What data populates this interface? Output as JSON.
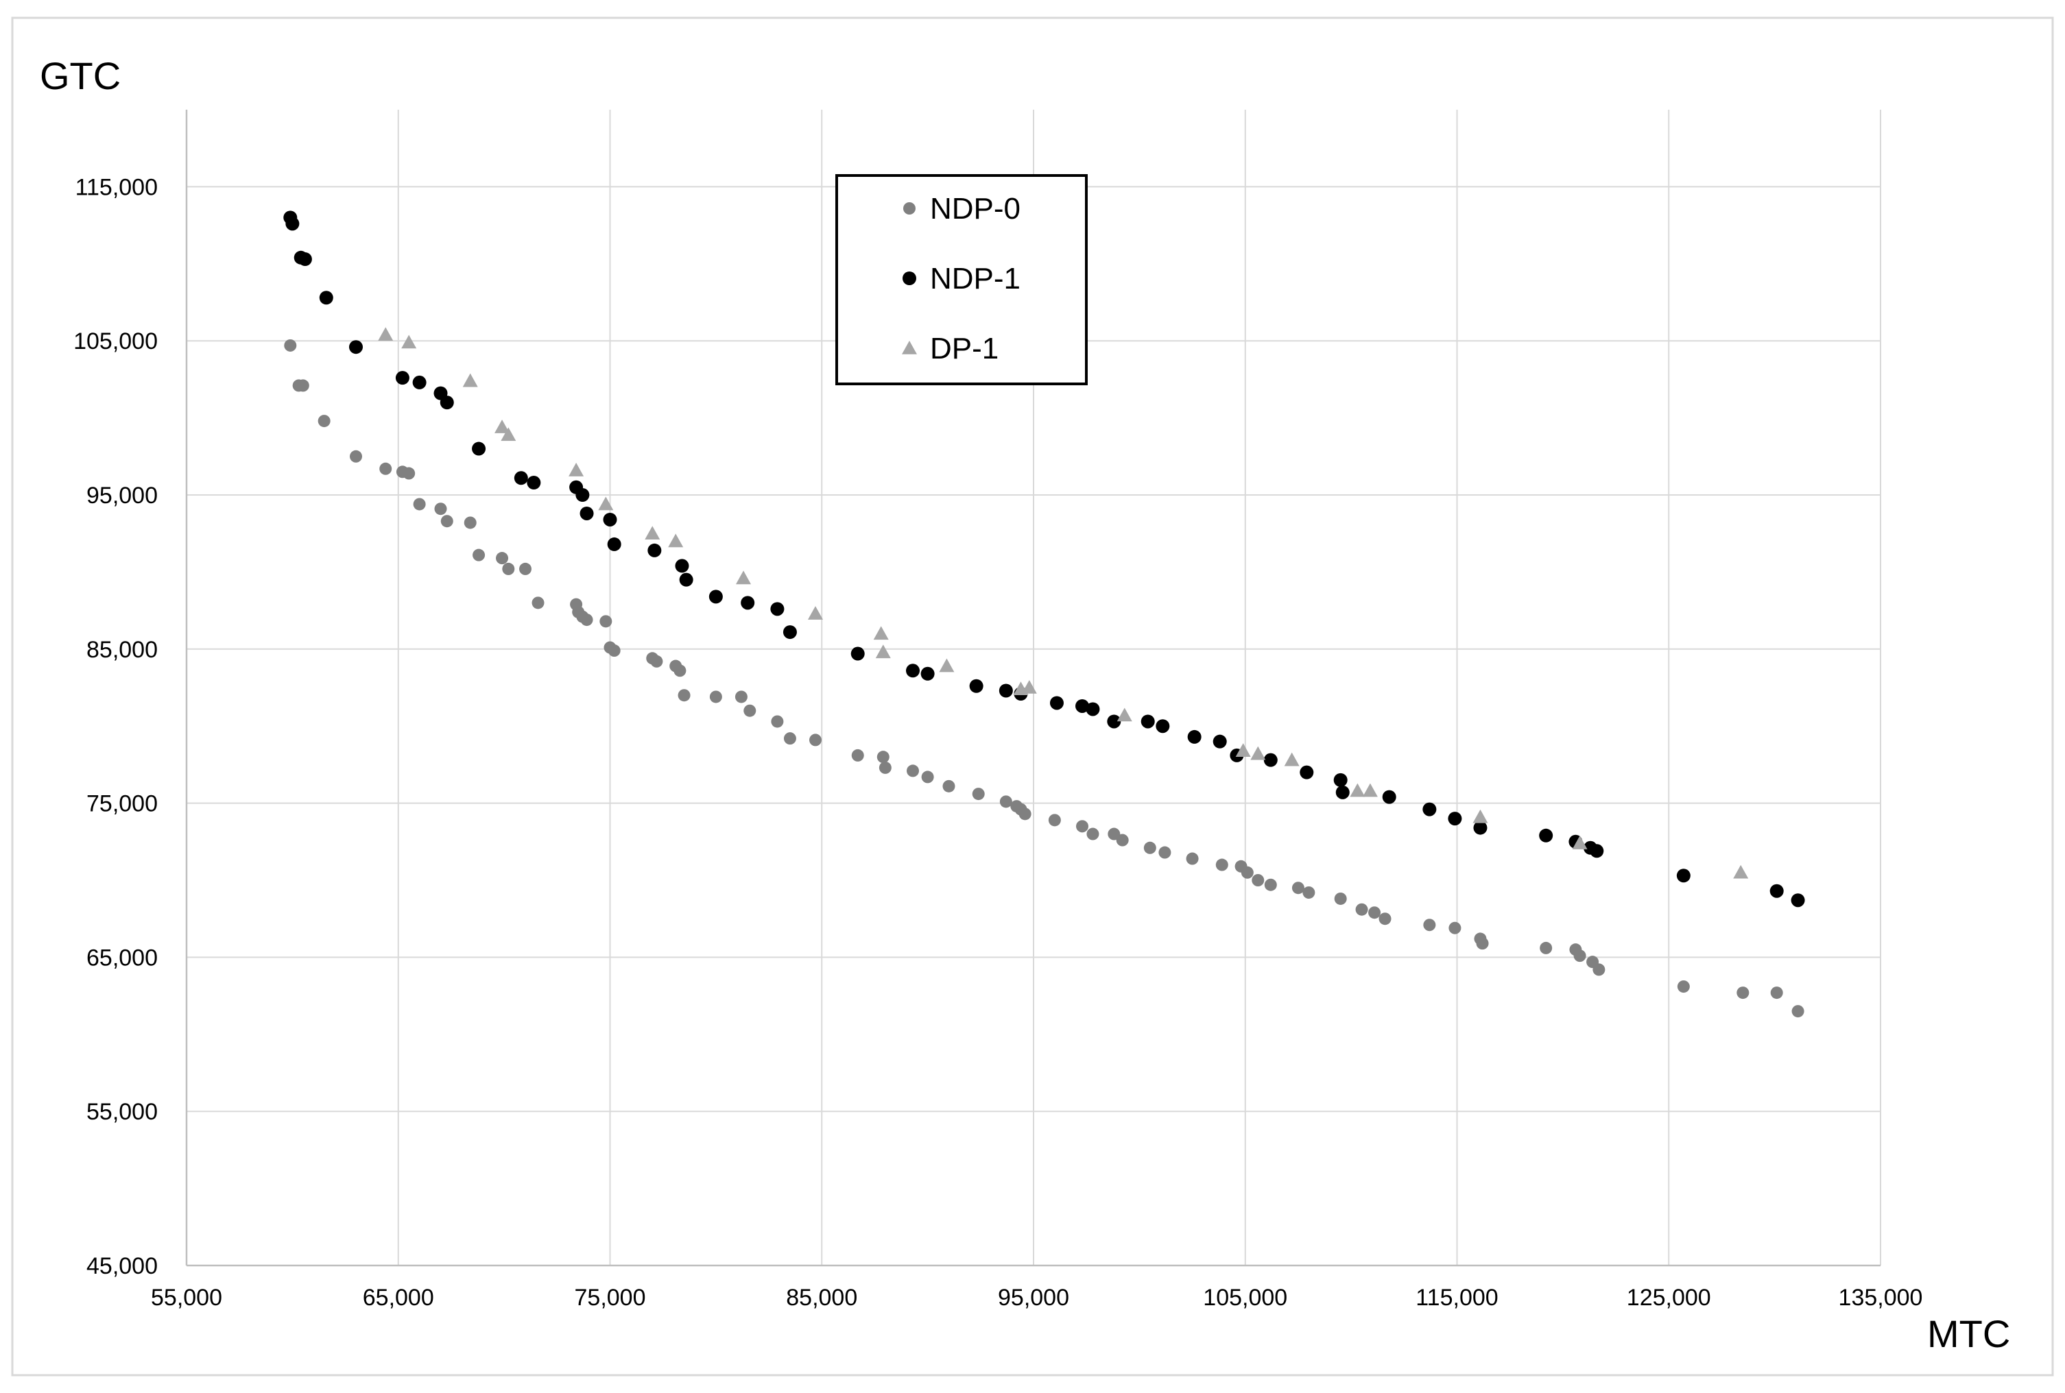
{
  "chart_data": {
    "type": "scatter",
    "xlabel": "MTC",
    "ylabel": "GTC",
    "xlim": [
      55000,
      135000
    ],
    "ylim": [
      45000,
      120000
    ],
    "x_ticks": [
      55000,
      65000,
      75000,
      85000,
      95000,
      105000,
      115000,
      125000,
      135000
    ],
    "y_ticks": [
      45000,
      55000,
      65000,
      75000,
      85000,
      95000,
      105000,
      115000
    ],
    "x_tick_labels": [
      "55,000",
      "65,000",
      "75,000",
      "85,000",
      "95,000",
      "105,000",
      "115,000",
      "125,000",
      "135,000"
    ],
    "y_tick_labels": [
      "45,000",
      "55,000",
      "65,000",
      "75,000",
      "85,000",
      "95,000",
      "105,000",
      "115,000"
    ],
    "grid": true,
    "legend_position": "top-center",
    "series": [
      {
        "name": "NDP-0",
        "marker": "circle",
        "color": "#808080",
        "points": [
          [
            59900,
            104700
          ],
          [
            60300,
            102100
          ],
          [
            60500,
            102100
          ],
          [
            61500,
            99800
          ],
          [
            63000,
            97500
          ],
          [
            64400,
            96700
          ],
          [
            65200,
            96500
          ],
          [
            65500,
            96400
          ],
          [
            66000,
            94400
          ],
          [
            67000,
            94100
          ],
          [
            67300,
            93300
          ],
          [
            68400,
            93200
          ],
          [
            68800,
            91100
          ],
          [
            69900,
            90900
          ],
          [
            70200,
            90200
          ],
          [
            71000,
            90200
          ],
          [
            71600,
            88000
          ],
          [
            73400,
            87900
          ],
          [
            73500,
            87400
          ],
          [
            73700,
            87100
          ],
          [
            73900,
            86900
          ],
          [
            74800,
            86800
          ],
          [
            75000,
            85100
          ],
          [
            75200,
            84900
          ],
          [
            77000,
            84400
          ],
          [
            77200,
            84200
          ],
          [
            78100,
            83900
          ],
          [
            78300,
            83600
          ],
          [
            78500,
            82000
          ],
          [
            80000,
            81900
          ],
          [
            81200,
            81900
          ],
          [
            81600,
            81000
          ],
          [
            82900,
            80300
          ],
          [
            83500,
            79200
          ],
          [
            84700,
            79100
          ],
          [
            86700,
            78100
          ],
          [
            87900,
            78000
          ],
          [
            88000,
            77300
          ],
          [
            89300,
            77100
          ],
          [
            90000,
            76700
          ],
          [
            91000,
            76100
          ],
          [
            92400,
            75600
          ],
          [
            93700,
            75100
          ],
          [
            94200,
            74800
          ],
          [
            94400,
            74600
          ],
          [
            94600,
            74300
          ],
          [
            96000,
            73900
          ],
          [
            97300,
            73500
          ],
          [
            97800,
            73000
          ],
          [
            98800,
            73000
          ],
          [
            99200,
            72600
          ],
          [
            100500,
            72100
          ],
          [
            101200,
            71800
          ],
          [
            102500,
            71400
          ],
          [
            103900,
            71000
          ],
          [
            104800,
            70900
          ],
          [
            105100,
            70500
          ],
          [
            105600,
            70000
          ],
          [
            106200,
            69700
          ],
          [
            107500,
            69500
          ],
          [
            108000,
            69200
          ],
          [
            109500,
            68800
          ],
          [
            110500,
            68100
          ],
          [
            111100,
            67900
          ],
          [
            111600,
            67500
          ],
          [
            113700,
            67100
          ],
          [
            114900,
            66900
          ],
          [
            116100,
            66200
          ],
          [
            116200,
            65900
          ],
          [
            119200,
            65600
          ],
          [
            120600,
            65500
          ],
          [
            120800,
            65100
          ],
          [
            121400,
            64700
          ],
          [
            121700,
            64200
          ],
          [
            125700,
            63100
          ],
          [
            128500,
            62700
          ],
          [
            130100,
            62700
          ],
          [
            131100,
            61500
          ]
        ]
      },
      {
        "name": "NDP-1",
        "marker": "circle",
        "color": "#000000",
        "points": [
          [
            59900,
            113000
          ],
          [
            60000,
            112600
          ],
          [
            60400,
            110400
          ],
          [
            60600,
            110300
          ],
          [
            61600,
            107800
          ],
          [
            63000,
            104600
          ],
          [
            65200,
            102600
          ],
          [
            66000,
            102300
          ],
          [
            67000,
            101600
          ],
          [
            67300,
            101000
          ],
          [
            68800,
            98000
          ],
          [
            70800,
            96100
          ],
          [
            71400,
            95800
          ],
          [
            73400,
            95500
          ],
          [
            73700,
            95000
          ],
          [
            73900,
            93800
          ],
          [
            75000,
            93400
          ],
          [
            75200,
            91800
          ],
          [
            77100,
            91400
          ],
          [
            78400,
            90400
          ],
          [
            78600,
            89500
          ],
          [
            80000,
            88400
          ],
          [
            81500,
            88000
          ],
          [
            82900,
            87600
          ],
          [
            83500,
            86100
          ],
          [
            86700,
            84700
          ],
          [
            89300,
            83600
          ],
          [
            90000,
            83400
          ],
          [
            92300,
            82600
          ],
          [
            93700,
            82300
          ],
          [
            94400,
            82100
          ],
          [
            96100,
            81500
          ],
          [
            97300,
            81300
          ],
          [
            97800,
            81100
          ],
          [
            98800,
            80300
          ],
          [
            100400,
            80300
          ],
          [
            101100,
            80000
          ],
          [
            102600,
            79300
          ],
          [
            103800,
            79000
          ],
          [
            104600,
            78100
          ],
          [
            106200,
            77800
          ],
          [
            107900,
            77000
          ],
          [
            109500,
            76500
          ],
          [
            109600,
            75700
          ],
          [
            111800,
            75400
          ],
          [
            113700,
            74600
          ],
          [
            114900,
            74000
          ],
          [
            116100,
            73400
          ],
          [
            119200,
            72900
          ],
          [
            120600,
            72500
          ],
          [
            121300,
            72100
          ],
          [
            121600,
            71900
          ],
          [
            125700,
            70300
          ],
          [
            130100,
            69300
          ],
          [
            131100,
            68700
          ]
        ]
      },
      {
        "name": "DP-1",
        "marker": "triangle",
        "color": "#a6a6a6",
        "points": [
          [
            64400,
            105400
          ],
          [
            65500,
            104900
          ],
          [
            68400,
            102400
          ],
          [
            69900,
            99400
          ],
          [
            70200,
            98900
          ],
          [
            73400,
            96600
          ],
          [
            74800,
            94400
          ],
          [
            77000,
            92500
          ],
          [
            78100,
            92000
          ],
          [
            81300,
            89600
          ],
          [
            84700,
            87300
          ],
          [
            87800,
            86000
          ],
          [
            87900,
            84800
          ],
          [
            90900,
            83900
          ],
          [
            94400,
            82400
          ],
          [
            94800,
            82500
          ],
          [
            99300,
            80700
          ],
          [
            104900,
            78400
          ],
          [
            105600,
            78200
          ],
          [
            107200,
            77800
          ],
          [
            110300,
            75800
          ],
          [
            110900,
            75800
          ],
          [
            116100,
            74100
          ],
          [
            120800,
            72400
          ],
          [
            128400,
            70500
          ]
        ]
      }
    ]
  }
}
